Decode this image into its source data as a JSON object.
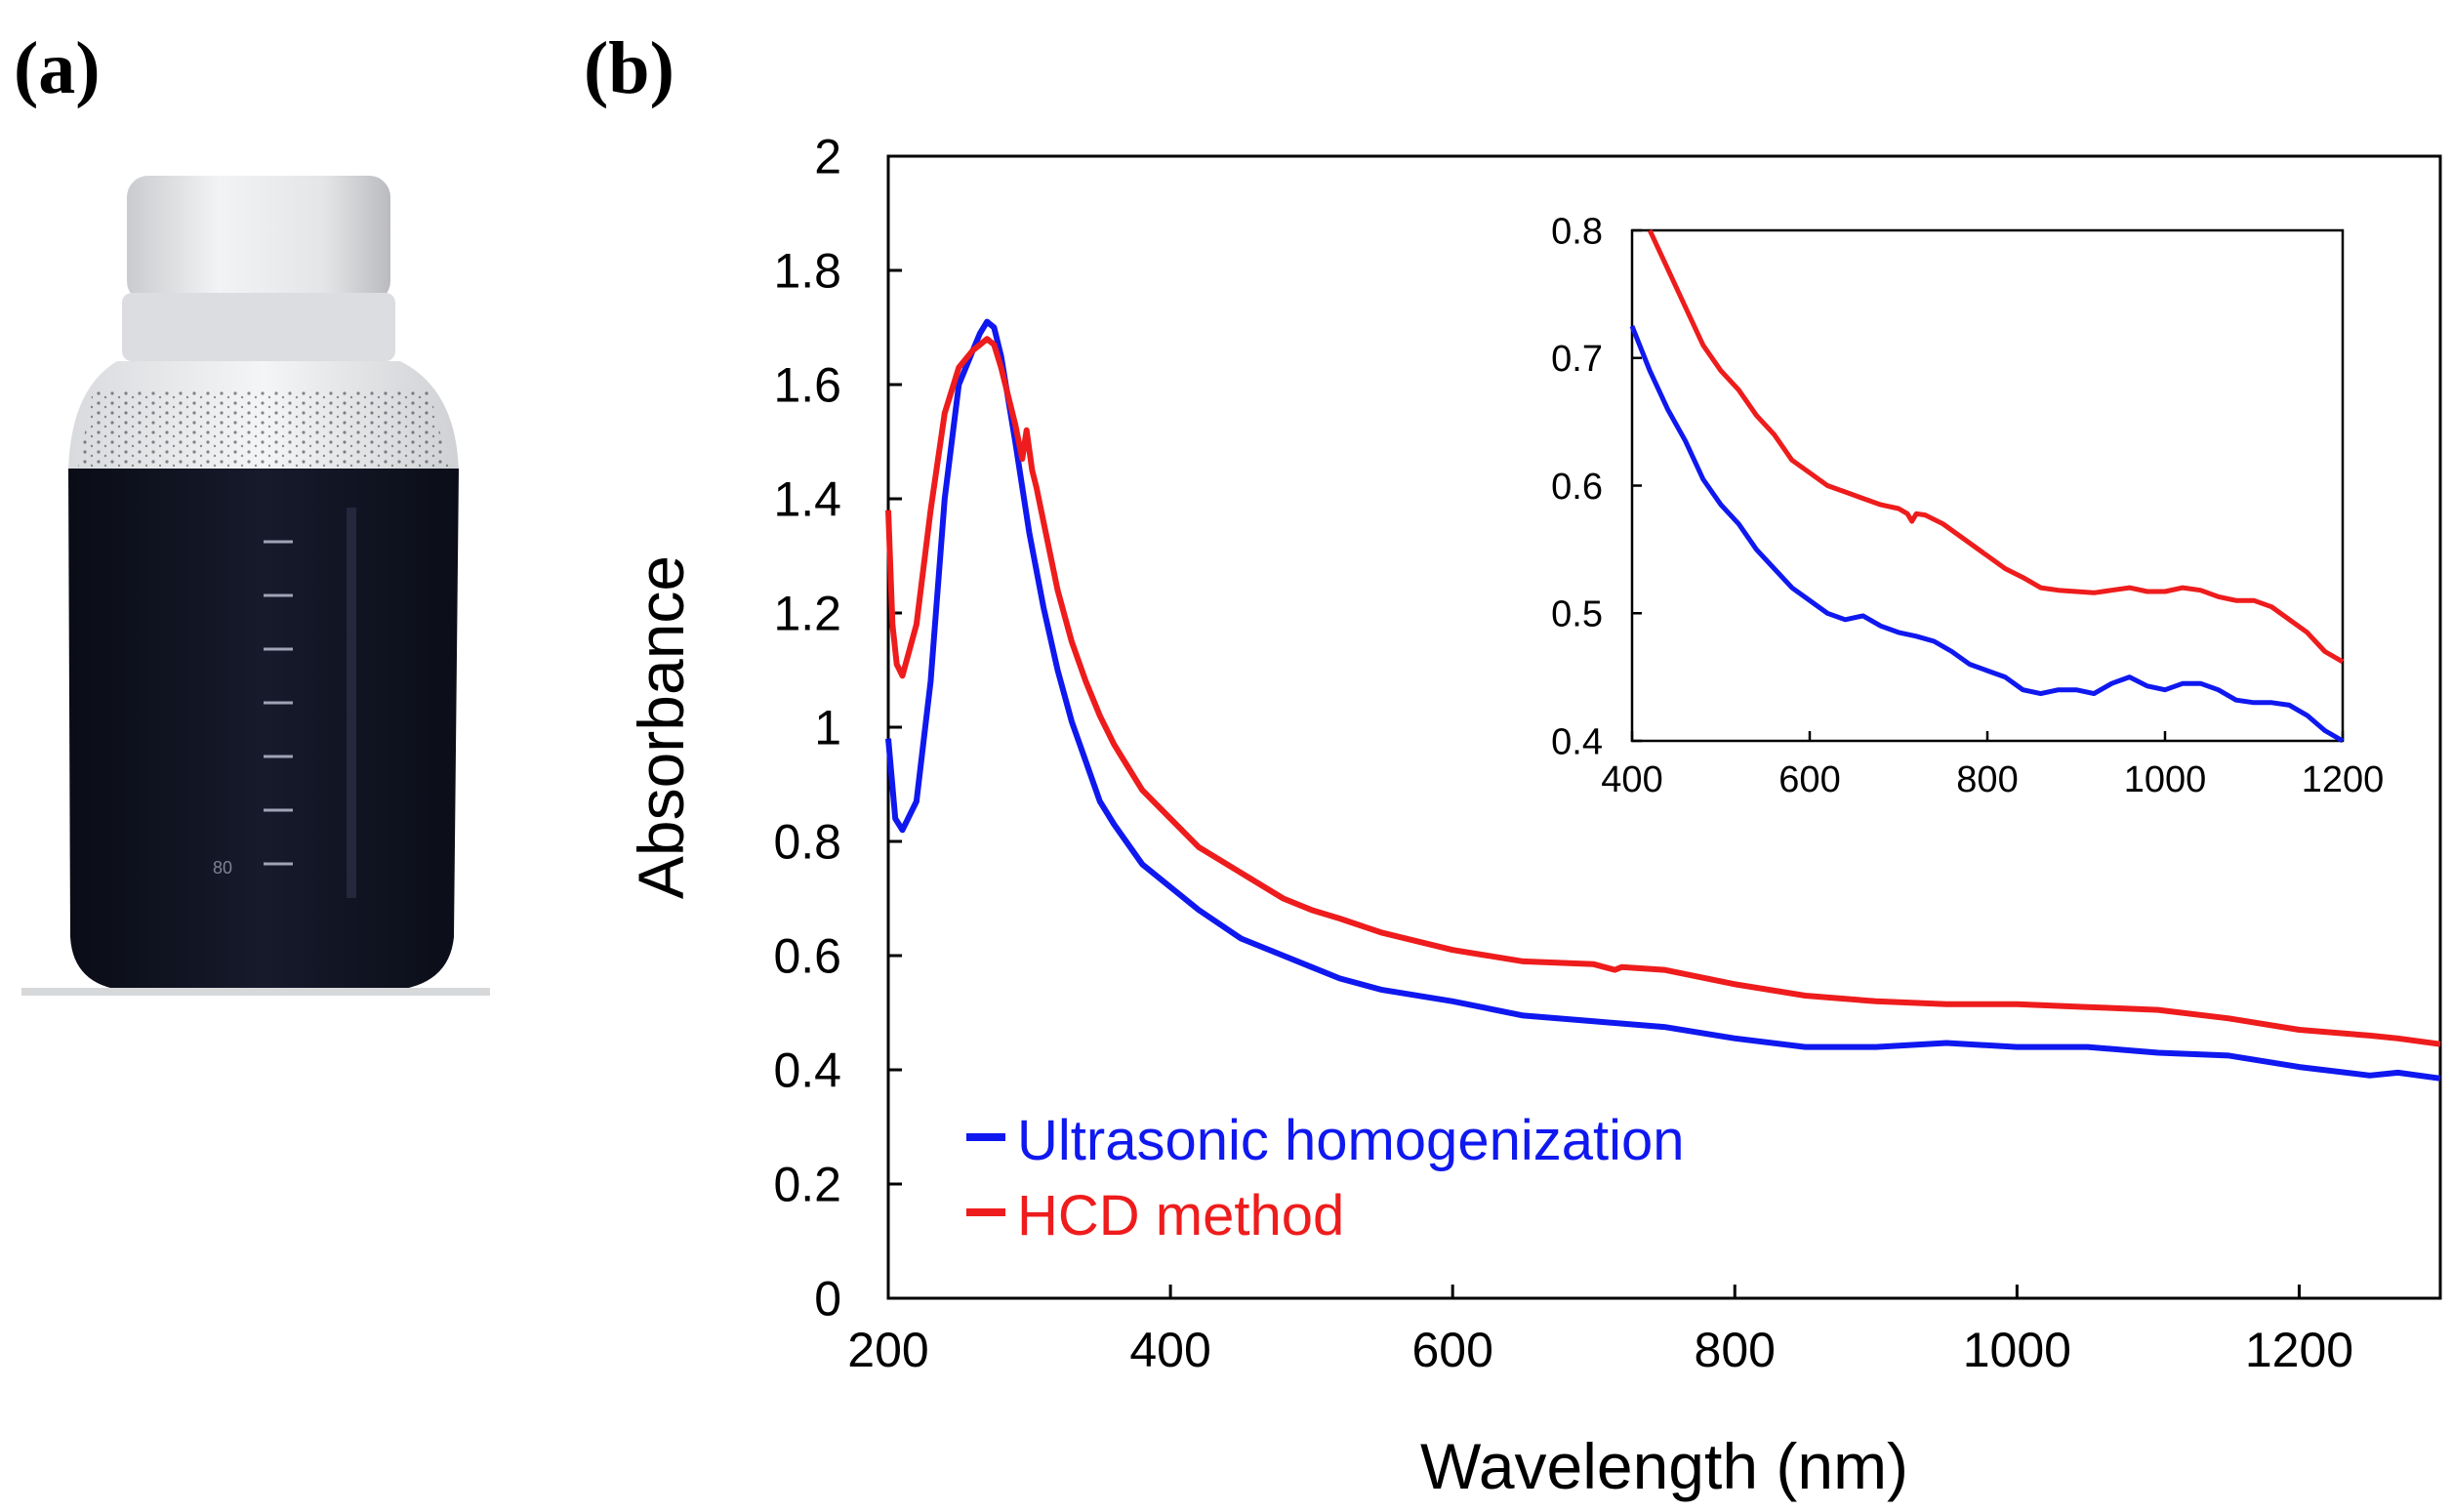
{
  "panels": {
    "a_label": "(a)",
    "b_label": "(b)"
  },
  "photo": {
    "subject": "bottle",
    "liquid_color": "#141827",
    "cap_color": "#e6e7e8",
    "graduation_mark": "80"
  },
  "colors": {
    "ultrasonic": "#0f18ef",
    "hcd": "#ee1c1c",
    "axis": "#000000"
  },
  "chart_data": [
    {
      "id": "main",
      "type": "line",
      "title": "",
      "xlabel": "Wavelength (nm)",
      "ylabel": "Absorbance",
      "xlim": [
        200,
        1300
      ],
      "ylim": [
        0,
        2
      ],
      "xticks": [
        200,
        400,
        600,
        800,
        1000,
        1200
      ],
      "yticks": [
        0,
        0.2,
        0.4,
        0.6,
        0.8,
        1,
        1.2,
        1.4,
        1.6,
        1.8,
        2
      ],
      "xtick_labels": [
        "200",
        "400",
        "600",
        "800",
        "1000",
        "1200"
      ],
      "ytick_labels": [
        "0",
        "0.2",
        "0.4",
        "0.6",
        "0.8",
        "1",
        "1.2",
        "1.4",
        "1.6",
        "1.8",
        "2"
      ],
      "grid": false,
      "legend_position": "bottom-left",
      "series": [
        {
          "name": "Ultrasonic homogenization",
          "color": "#0f18ef",
          "x": [
            200,
            205,
            210,
            220,
            230,
            240,
            250,
            260,
            265,
            270,
            275,
            280,
            290,
            300,
            310,
            320,
            330,
            340,
            350,
            360,
            380,
            400,
            420,
            450,
            480,
            500,
            520,
            550,
            600,
            650,
            700,
            750,
            800,
            850,
            900,
            950,
            1000,
            1050,
            1100,
            1150,
            1200,
            1250,
            1270,
            1300
          ],
          "y": [
            0.98,
            0.84,
            0.82,
            0.87,
            1.08,
            1.4,
            1.6,
            1.66,
            1.69,
            1.71,
            1.7,
            1.65,
            1.5,
            1.34,
            1.21,
            1.1,
            1.01,
            0.94,
            0.87,
            0.83,
            0.76,
            0.72,
            0.68,
            0.63,
            0.6,
            0.58,
            0.56,
            0.54,
            0.52,
            0.495,
            0.485,
            0.475,
            0.455,
            0.44,
            0.44,
            0.447,
            0.44,
            0.44,
            0.43,
            0.425,
            0.405,
            0.39,
            0.395,
            0.385
          ]
        },
        {
          "name": "HCD method",
          "color": "#ee1c1c",
          "x": [
            200,
            203,
            206,
            210,
            220,
            230,
            240,
            250,
            260,
            265,
            270,
            275,
            280,
            290,
            295,
            298,
            302,
            305,
            310,
            320,
            330,
            340,
            350,
            360,
            380,
            400,
            420,
            450,
            480,
            500,
            520,
            550,
            600,
            650,
            700,
            715,
            720,
            750,
            800,
            850,
            900,
            950,
            1000,
            1050,
            1100,
            1150,
            1200,
            1250,
            1270,
            1300
          ],
          "y": [
            1.38,
            1.18,
            1.11,
            1.09,
            1.18,
            1.38,
            1.55,
            1.63,
            1.66,
            1.67,
            1.68,
            1.67,
            1.63,
            1.53,
            1.47,
            1.52,
            1.45,
            1.42,
            1.36,
            1.24,
            1.15,
            1.08,
            1.02,
            0.97,
            0.89,
            0.84,
            0.79,
            0.745,
            0.7,
            0.68,
            0.665,
            0.64,
            0.61,
            0.59,
            0.585,
            0.575,
            0.58,
            0.575,
            0.55,
            0.53,
            0.52,
            0.515,
            0.515,
            0.51,
            0.505,
            0.49,
            0.47,
            0.46,
            0.455,
            0.445
          ]
        }
      ]
    },
    {
      "id": "inset",
      "type": "line",
      "title": "",
      "xlabel": "",
      "ylabel": "",
      "xlim": [
        400,
        1200
      ],
      "ylim": [
        0.4,
        0.8
      ],
      "xticks": [
        400,
        600,
        800,
        1000,
        1200
      ],
      "yticks": [
        0.4,
        0.5,
        0.6,
        0.7,
        0.8
      ],
      "xtick_labels": [
        "400",
        "600",
        "800",
        "1000",
        "1200"
      ],
      "ytick_labels": [
        "0.4",
        "0.5",
        "0.6",
        "0.7",
        "0.8"
      ],
      "grid": false,
      "legend_position": "none",
      "series": [
        {
          "name": "Ultrasonic homogenization",
          "color": "#0f18ef",
          "x": [
            400,
            420,
            440,
            460,
            480,
            500,
            520,
            540,
            560,
            580,
            600,
            620,
            640,
            660,
            680,
            700,
            720,
            740,
            760,
            780,
            800,
            820,
            840,
            860,
            880,
            900,
            920,
            940,
            960,
            980,
            1000,
            1020,
            1040,
            1060,
            1080,
            1100,
            1120,
            1140,
            1160,
            1180,
            1200
          ],
          "y": [
            0.725,
            0.69,
            0.66,
            0.635,
            0.605,
            0.585,
            0.57,
            0.55,
            0.535,
            0.52,
            0.51,
            0.5,
            0.495,
            0.498,
            0.49,
            0.485,
            0.482,
            0.478,
            0.47,
            0.46,
            0.455,
            0.45,
            0.44,
            0.437,
            0.44,
            0.44,
            0.437,
            0.445,
            0.45,
            0.443,
            0.44,
            0.445,
            0.445,
            0.44,
            0.432,
            0.43,
            0.43,
            0.428,
            0.42,
            0.408,
            0.4
          ]
        },
        {
          "name": "HCD method",
          "color": "#ee1c1c",
          "x": [
            420,
            440,
            460,
            480,
            500,
            520,
            540,
            560,
            580,
            600,
            620,
            640,
            660,
            680,
            700,
            710,
            715,
            720,
            730,
            750,
            780,
            800,
            820,
            840,
            860,
            880,
            900,
            920,
            940,
            960,
            980,
            1000,
            1020,
            1040,
            1060,
            1080,
            1100,
            1120,
            1140,
            1160,
            1180,
            1200
          ],
          "y": [
            0.8,
            0.77,
            0.74,
            0.71,
            0.69,
            0.675,
            0.655,
            0.64,
            0.62,
            0.61,
            0.6,
            0.595,
            0.59,
            0.585,
            0.582,
            0.578,
            0.572,
            0.578,
            0.577,
            0.57,
            0.555,
            0.545,
            0.535,
            0.528,
            0.52,
            0.518,
            0.517,
            0.516,
            0.518,
            0.52,
            0.517,
            0.517,
            0.52,
            0.518,
            0.513,
            0.51,
            0.51,
            0.505,
            0.495,
            0.485,
            0.47,
            0.462
          ]
        }
      ]
    }
  ]
}
